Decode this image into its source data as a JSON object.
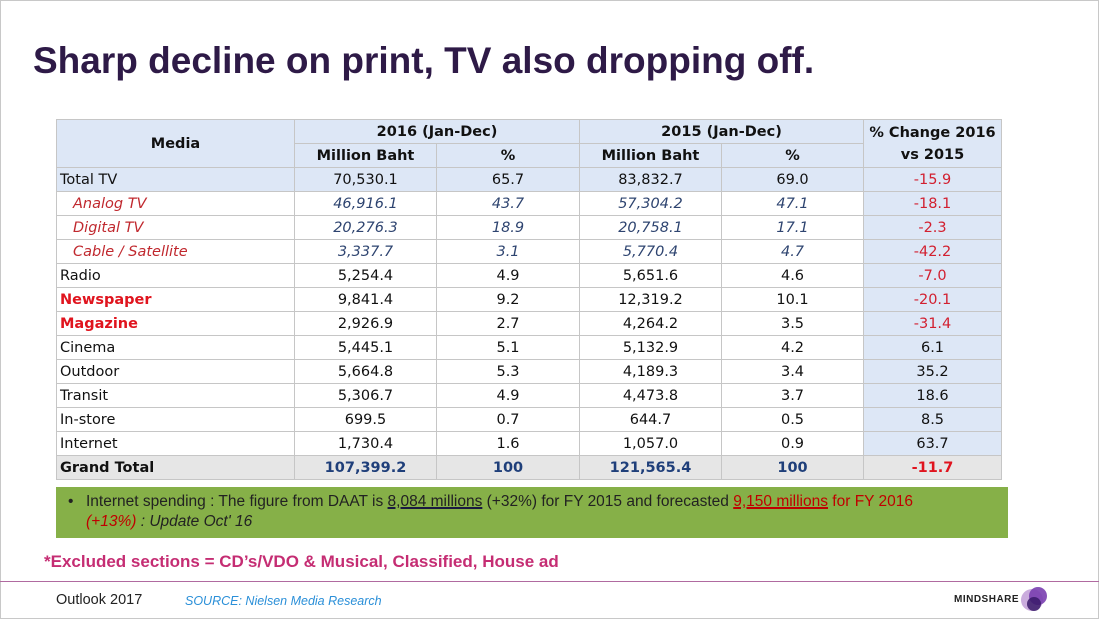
{
  "slide": {
    "title": "Sharp decline on print, TV also dropping off."
  },
  "table": {
    "header": {
      "media": "Media",
      "period_2016": "2016 (Jan-Dec)",
      "period_2015": "2015 (Jan-Dec)",
      "change": "% Change 2016 vs 2015",
      "million_baht": "Million Baht",
      "percent": "%"
    },
    "rows": [
      {
        "media": "Total TV",
        "mb_2016": "70,530.1",
        "pct_2016": "65.7",
        "mb_2015": "83,832.7",
        "pct_2015": "69.0",
        "change": "-15.9"
      },
      {
        "media": "Analog TV",
        "mb_2016": "46,916.1",
        "pct_2016": "43.7",
        "mb_2015": "57,304.2",
        "pct_2015": "47.1",
        "change": "-18.1"
      },
      {
        "media": "Digital TV",
        "mb_2016": "20,276.3",
        "pct_2016": "18.9",
        "mb_2015": "20,758.1",
        "pct_2015": "17.1",
        "change": "-2.3"
      },
      {
        "media": "Cable / Satellite",
        "mb_2016": "3,337.7",
        "pct_2016": "3.1",
        "mb_2015": "5,770.4",
        "pct_2015": "4.7",
        "change": "-42.2"
      },
      {
        "media": "Radio",
        "mb_2016": "5,254.4",
        "pct_2016": "4.9",
        "mb_2015": "5,651.6",
        "pct_2015": "4.6",
        "change": "-7.0"
      },
      {
        "media": "Newspaper",
        "mb_2016": "9,841.4",
        "pct_2016": "9.2",
        "mb_2015": "12,319.2",
        "pct_2015": "10.1",
        "change": "-20.1"
      },
      {
        "media": "Magazine",
        "mb_2016": "2,926.9",
        "pct_2016": "2.7",
        "mb_2015": "4,264.2",
        "pct_2015": "3.5",
        "change": "-31.4"
      },
      {
        "media": "Cinema",
        "mb_2016": "5,445.1",
        "pct_2016": "5.1",
        "mb_2015": "5,132.9",
        "pct_2015": "4.2",
        "change": "6.1"
      },
      {
        "media": "Outdoor",
        "mb_2016": "5,664.8",
        "pct_2016": "5.3",
        "mb_2015": "4,189.3",
        "pct_2015": "3.4",
        "change": "35.2"
      },
      {
        "media": "Transit",
        "mb_2016": "5,306.7",
        "pct_2016": "4.9",
        "mb_2015": "4,473.8",
        "pct_2015": "3.7",
        "change": "18.6"
      },
      {
        "media": "In-store",
        "mb_2016": "699.5",
        "pct_2016": "0.7",
        "mb_2015": "644.7",
        "pct_2015": "0.5",
        "change": "8.5"
      },
      {
        "media": "Internet",
        "mb_2016": "1,730.4",
        "pct_2016": "1.6",
        "mb_2015": "1,057.0",
        "pct_2015": "0.9",
        "change": "63.7"
      },
      {
        "media": "Grand Total",
        "mb_2016": "107,399.2",
        "pct_2016": "100",
        "mb_2015": "121,565.4",
        "pct_2015": "100",
        "change": "-11.7"
      }
    ]
  },
  "note": {
    "bullet": "•",
    "part1": "Internet spending : The figure from DAAT is ",
    "value_2015": "8,084 millions",
    "part2": " (+32%) for FY 2015 and forecasted ",
    "value_2016": "9,150 millions",
    "part3": " for FY 2016",
    "part4": "(+13%)",
    "part5": " : Update Oct' 16"
  },
  "excluded": "*Excluded sections = CD’s/VDO & Musical, Classified, House ad",
  "footer": {
    "outlook": "Outlook 2017",
    "source": "SOURCE: Nielsen Media Research",
    "logo": "MINDSHARE"
  },
  "colors": {
    "title": "#2e1a47",
    "header_bg": "#dde7f6",
    "negative": "#d22030",
    "note_bg": "#86b048",
    "excluded": "#c52d73",
    "source": "#2a8fd8"
  }
}
